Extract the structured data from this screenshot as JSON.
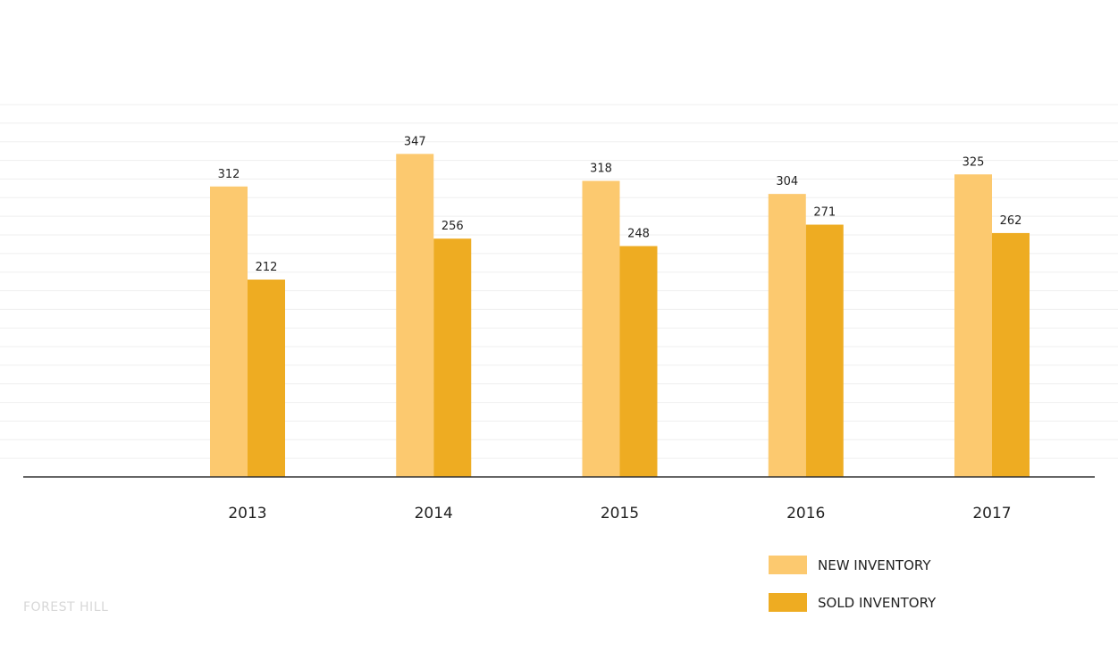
{
  "chart_data": {
    "type": "bar",
    "categories": [
      "2013",
      "2014",
      "2015",
      "2016",
      "2017"
    ],
    "series": [
      {
        "name": "NEW INVENTORY",
        "values": [
          312,
          347,
          318,
          304,
          325
        ],
        "color": "#fcc96f"
      },
      {
        "name": "SOLD INVENTORY",
        "values": [
          212,
          256,
          248,
          271,
          262
        ],
        "color": "#eeac22"
      }
    ],
    "title": "",
    "xlabel": "",
    "ylabel": "",
    "ylim": [
      0,
      400
    ],
    "grid": true,
    "legend": "bottom-right"
  },
  "footer": {
    "label": "FOREST HILL"
  }
}
